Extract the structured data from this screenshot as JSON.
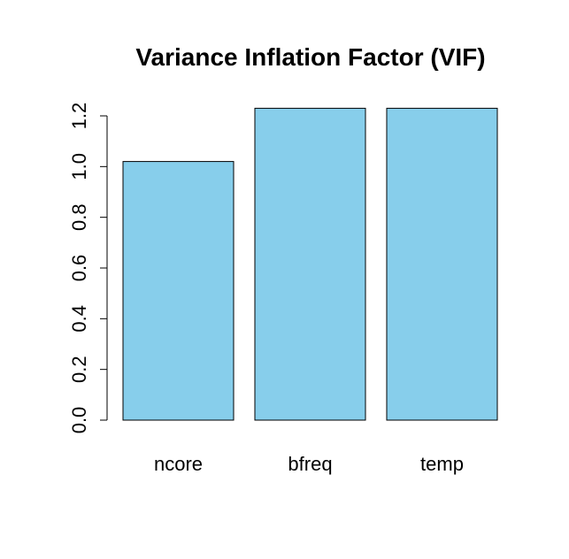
{
  "chart_data": {
    "type": "bar",
    "title": "Variance Inflation Factor (VIF)",
    "xlabel": "",
    "ylabel": "",
    "categories": [
      "ncore",
      "bfreq",
      "temp"
    ],
    "values": [
      1.02,
      1.23,
      1.23
    ],
    "ylim": [
      0,
      1.2
    ],
    "yticks": [
      "0.0",
      "0.2",
      "0.4",
      "0.6",
      "0.8",
      "1.0",
      "1.2"
    ],
    "bar_color": "#87CEEB",
    "grid": false,
    "legend": "none"
  }
}
